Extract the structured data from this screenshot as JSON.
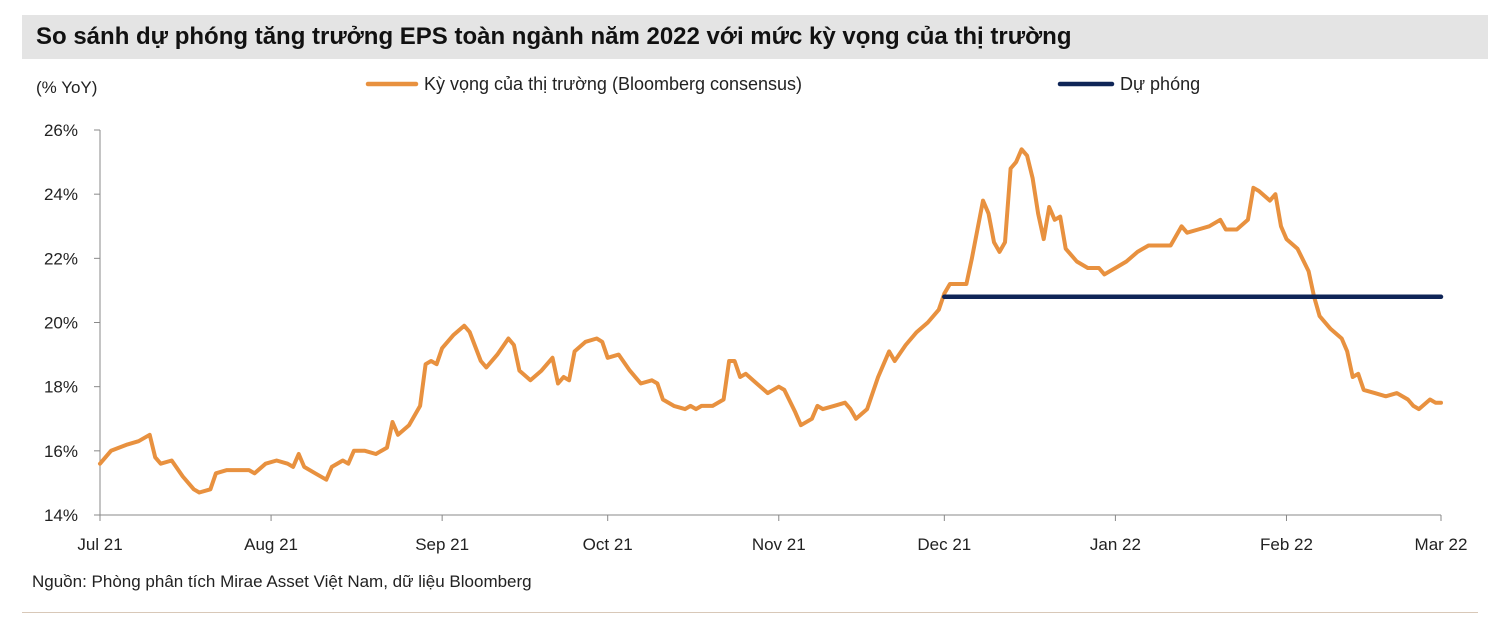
{
  "title": "So sánh dự phóng tăng trưởng EPS toàn ngành năm 2022 với mức kỳ vọng của thị trường",
  "source": "Nguồn: Phòng phân tích Mirae Asset Việt Nam, dữ liệu Bloomberg",
  "chart_data": {
    "type": "line",
    "ylabel": "(% YoY)",
    "ylim": [
      14,
      26
    ],
    "yticks": [
      "14%",
      "16%",
      "18%",
      "20%",
      "22%",
      "24%",
      "26%"
    ],
    "x_start": "2021-07-01",
    "x_end": "2022-03-01",
    "xticks": [
      {
        "label": "Jul 21",
        "date": "2021-07-01"
      },
      {
        "label": "Aug 21",
        "date": "2021-08-01"
      },
      {
        "label": "Sep 21",
        "date": "2021-09-01"
      },
      {
        "label": "Oct 21",
        "date": "2021-10-01"
      },
      {
        "label": "Nov 21",
        "date": "2021-11-01"
      },
      {
        "label": "Dec 21",
        "date": "2021-12-01"
      },
      {
        "label": "Jan 22",
        "date": "2022-01-01"
      },
      {
        "label": "Feb 22",
        "date": "2022-02-01"
      },
      {
        "label": "Mar 22",
        "date": "2022-03-01"
      }
    ],
    "legend_position": "top",
    "series": [
      {
        "name": "Kỳ vọng của thị trường (Bloomberg consensus)",
        "color": "#e8913f",
        "points": [
          [
            "2021-07-01",
            15.6
          ],
          [
            "2021-07-03",
            16.0
          ],
          [
            "2021-07-06",
            16.2
          ],
          [
            "2021-07-08",
            16.3
          ],
          [
            "2021-07-10",
            16.5
          ],
          [
            "2021-07-11",
            15.8
          ],
          [
            "2021-07-12",
            15.6
          ],
          [
            "2021-07-14",
            15.7
          ],
          [
            "2021-07-16",
            15.2
          ],
          [
            "2021-07-18",
            14.8
          ],
          [
            "2021-07-19",
            14.7
          ],
          [
            "2021-07-21",
            14.8
          ],
          [
            "2021-07-22",
            15.3
          ],
          [
            "2021-07-24",
            15.4
          ],
          [
            "2021-07-26",
            15.4
          ],
          [
            "2021-07-28",
            15.4
          ],
          [
            "2021-07-29",
            15.3
          ],
          [
            "2021-07-31",
            15.6
          ],
          [
            "2021-08-02",
            15.7
          ],
          [
            "2021-08-04",
            15.6
          ],
          [
            "2021-08-05",
            15.5
          ],
          [
            "2021-08-06",
            15.9
          ],
          [
            "2021-08-07",
            15.5
          ],
          [
            "2021-08-09",
            15.3
          ],
          [
            "2021-08-11",
            15.1
          ],
          [
            "2021-08-12",
            15.5
          ],
          [
            "2021-08-14",
            15.7
          ],
          [
            "2021-08-15",
            15.6
          ],
          [
            "2021-08-16",
            16.0
          ],
          [
            "2021-08-18",
            16.0
          ],
          [
            "2021-08-20",
            15.9
          ],
          [
            "2021-08-22",
            16.1
          ],
          [
            "2021-08-23",
            16.9
          ],
          [
            "2021-08-24",
            16.5
          ],
          [
            "2021-08-26",
            16.8
          ],
          [
            "2021-08-28",
            17.4
          ],
          [
            "2021-08-29",
            18.7
          ],
          [
            "2021-08-30",
            18.8
          ],
          [
            "2021-08-31",
            18.7
          ],
          [
            "2021-09-01",
            19.2
          ],
          [
            "2021-09-03",
            19.6
          ],
          [
            "2021-09-05",
            19.9
          ],
          [
            "2021-09-06",
            19.7
          ],
          [
            "2021-09-08",
            18.8
          ],
          [
            "2021-09-09",
            18.6
          ],
          [
            "2021-09-11",
            19.0
          ],
          [
            "2021-09-13",
            19.5
          ],
          [
            "2021-09-14",
            19.3
          ],
          [
            "2021-09-15",
            18.5
          ],
          [
            "2021-09-17",
            18.2
          ],
          [
            "2021-09-19",
            18.5
          ],
          [
            "2021-09-20",
            18.7
          ],
          [
            "2021-09-21",
            18.9
          ],
          [
            "2021-09-22",
            18.1
          ],
          [
            "2021-09-23",
            18.3
          ],
          [
            "2021-09-24",
            18.2
          ],
          [
            "2021-09-25",
            19.1
          ],
          [
            "2021-09-27",
            19.4
          ],
          [
            "2021-09-29",
            19.5
          ],
          [
            "2021-09-30",
            19.4
          ],
          [
            "2021-10-01",
            18.9
          ],
          [
            "2021-10-03",
            19.0
          ],
          [
            "2021-10-05",
            18.5
          ],
          [
            "2021-10-07",
            18.1
          ],
          [
            "2021-10-09",
            18.2
          ],
          [
            "2021-10-10",
            18.1
          ],
          [
            "2021-10-11",
            17.6
          ],
          [
            "2021-10-13",
            17.4
          ],
          [
            "2021-10-15",
            17.3
          ],
          [
            "2021-10-16",
            17.4
          ],
          [
            "2021-10-17",
            17.3
          ],
          [
            "2021-10-18",
            17.4
          ],
          [
            "2021-10-20",
            17.4
          ],
          [
            "2021-10-22",
            17.6
          ],
          [
            "2021-10-23",
            18.8
          ],
          [
            "2021-10-24",
            18.8
          ],
          [
            "2021-10-25",
            18.3
          ],
          [
            "2021-10-26",
            18.4
          ],
          [
            "2021-10-28",
            18.1
          ],
          [
            "2021-10-30",
            17.8
          ],
          [
            "2021-11-01",
            18.0
          ],
          [
            "2021-11-02",
            17.9
          ],
          [
            "2021-11-04",
            17.2
          ],
          [
            "2021-11-05",
            16.8
          ],
          [
            "2021-11-07",
            17.0
          ],
          [
            "2021-11-08",
            17.4
          ],
          [
            "2021-11-09",
            17.3
          ],
          [
            "2021-11-11",
            17.4
          ],
          [
            "2021-11-13",
            17.5
          ],
          [
            "2021-11-14",
            17.3
          ],
          [
            "2021-11-15",
            17.0
          ],
          [
            "2021-11-17",
            17.3
          ],
          [
            "2021-11-19",
            18.3
          ],
          [
            "2021-11-21",
            19.1
          ],
          [
            "2021-11-22",
            18.8
          ],
          [
            "2021-11-24",
            19.3
          ],
          [
            "2021-11-26",
            19.7
          ],
          [
            "2021-11-28",
            20.0
          ],
          [
            "2021-11-30",
            20.4
          ],
          [
            "2021-12-01",
            20.9
          ],
          [
            "2021-12-02",
            21.2
          ],
          [
            "2021-12-04",
            21.2
          ],
          [
            "2021-12-05",
            21.2
          ],
          [
            "2021-12-06",
            22.0
          ],
          [
            "2021-12-08",
            23.8
          ],
          [
            "2021-12-09",
            23.4
          ],
          [
            "2021-12-10",
            22.5
          ],
          [
            "2021-12-11",
            22.2
          ],
          [
            "2021-12-12",
            22.5
          ],
          [
            "2021-12-13",
            24.8
          ],
          [
            "2021-12-14",
            25.0
          ],
          [
            "2021-12-15",
            25.4
          ],
          [
            "2021-12-16",
            25.2
          ],
          [
            "2021-12-17",
            24.5
          ],
          [
            "2021-12-18",
            23.4
          ],
          [
            "2021-12-19",
            22.6
          ],
          [
            "2021-12-20",
            23.6
          ],
          [
            "2021-12-21",
            23.2
          ],
          [
            "2021-12-22",
            23.3
          ],
          [
            "2021-12-23",
            22.3
          ],
          [
            "2021-12-25",
            21.9
          ],
          [
            "2021-12-27",
            21.7
          ],
          [
            "2021-12-29",
            21.7
          ],
          [
            "2021-12-30",
            21.5
          ],
          [
            "2022-01-01",
            21.7
          ],
          [
            "2022-01-03",
            21.9
          ],
          [
            "2022-01-05",
            22.2
          ],
          [
            "2022-01-07",
            22.4
          ],
          [
            "2022-01-09",
            22.4
          ],
          [
            "2022-01-11",
            22.4
          ],
          [
            "2022-01-12",
            22.7
          ],
          [
            "2022-01-13",
            23.0
          ],
          [
            "2022-01-14",
            22.8
          ],
          [
            "2022-01-16",
            22.9
          ],
          [
            "2022-01-18",
            23.0
          ],
          [
            "2022-01-20",
            23.2
          ],
          [
            "2022-01-21",
            22.9
          ],
          [
            "2022-01-23",
            22.9
          ],
          [
            "2022-01-25",
            23.2
          ],
          [
            "2022-01-26",
            24.2
          ],
          [
            "2022-01-27",
            24.1
          ],
          [
            "2022-01-29",
            23.8
          ],
          [
            "2022-01-30",
            24.0
          ],
          [
            "2022-01-31",
            23.0
          ],
          [
            "2022-02-01",
            22.6
          ],
          [
            "2022-02-03",
            22.3
          ],
          [
            "2022-02-05",
            21.6
          ],
          [
            "2022-02-06",
            20.8
          ],
          [
            "2022-02-07",
            20.2
          ],
          [
            "2022-02-09",
            19.8
          ],
          [
            "2022-02-11",
            19.5
          ],
          [
            "2022-02-12",
            19.1
          ],
          [
            "2022-02-13",
            18.3
          ],
          [
            "2022-02-14",
            18.4
          ],
          [
            "2022-02-15",
            17.9
          ],
          [
            "2022-02-17",
            17.8
          ],
          [
            "2022-02-19",
            17.7
          ],
          [
            "2022-02-21",
            17.8
          ],
          [
            "2022-02-23",
            17.6
          ],
          [
            "2022-02-24",
            17.4
          ],
          [
            "2022-02-25",
            17.3
          ],
          [
            "2022-02-27",
            17.6
          ],
          [
            "2022-02-28",
            17.5
          ],
          [
            "2022-03-01",
            17.5
          ]
        ]
      },
      {
        "name": "Dự phóng",
        "color": "#0f2557",
        "points": [
          [
            "2021-12-01",
            20.8
          ],
          [
            "2022-03-01",
            20.8
          ]
        ]
      }
    ]
  }
}
